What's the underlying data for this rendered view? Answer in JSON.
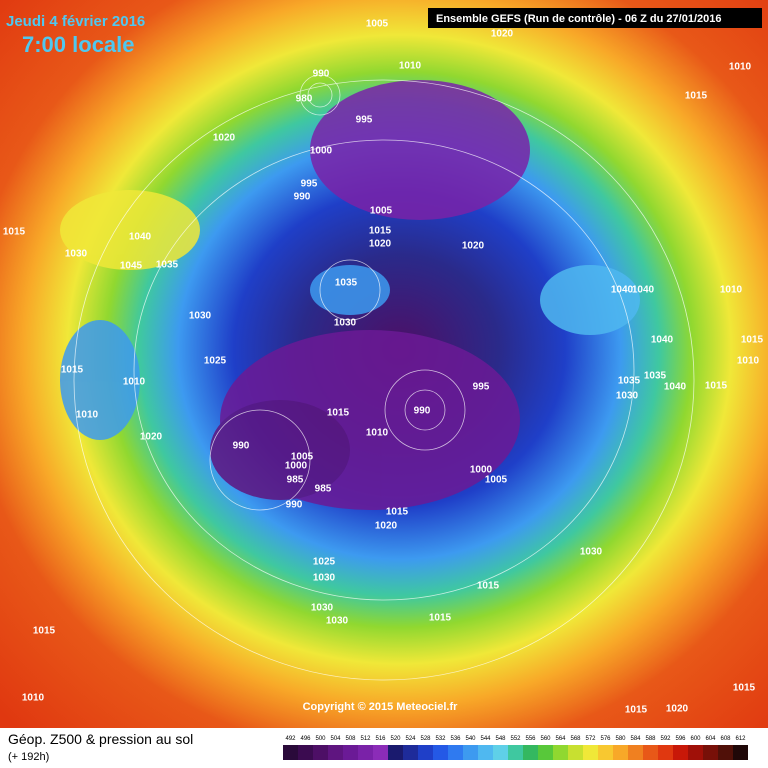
{
  "header": {
    "date": "Jeudi 4 février 2016",
    "time": "7:00 locale",
    "run": "Ensemble GEFS  (Run de contrôle)  -  06 Z du 27/01/2016"
  },
  "copyright": "Copyright © 2015 Meteociel.fr",
  "footer": {
    "title": "Géop. Z500 & pression au sol",
    "lead": "(+ 192h)"
  },
  "colorbar": {
    "ticks": [
      492,
      496,
      500,
      504,
      508,
      512,
      516,
      520,
      524,
      528,
      532,
      536,
      540,
      544,
      548,
      552,
      556,
      560,
      564,
      568,
      572,
      576,
      580,
      584,
      588,
      592,
      596,
      600,
      604,
      608,
      612
    ],
    "colors": [
      "#2a0a3a",
      "#3b0b50",
      "#4d0f66",
      "#5f1580",
      "#6b1a96",
      "#7a22a8",
      "#8b2cb8",
      "#1a1a6e",
      "#1e2b9a",
      "#1f3fc8",
      "#2459e6",
      "#2f7af0",
      "#3d9af0",
      "#4fb8f0",
      "#5fd0e8",
      "#3fc8a0",
      "#34b860",
      "#58c83a",
      "#90d830",
      "#c8e030",
      "#f0e838",
      "#f8c830",
      "#f8a828",
      "#f08020",
      "#e85818",
      "#e03810",
      "#c81808",
      "#a01008",
      "#781008",
      "#501008",
      "#200808"
    ]
  },
  "isobar_labels": [
    1005,
    1020,
    1010,
    1010,
    1015,
    990,
    980,
    995,
    1020,
    1000,
    995,
    990,
    1005,
    1015,
    1020,
    1020,
    1015,
    1040,
    1030,
    1045,
    1035,
    1035,
    1040,
    1040,
    1010,
    1030,
    1030,
    1040,
    1015,
    1025,
    1010,
    1015,
    1010,
    1035,
    1035,
    995,
    1040,
    1015,
    1030,
    1015,
    990,
    1010,
    1010,
    1020,
    990,
    1005,
    1000,
    985,
    985,
    1000,
    1005,
    990,
    1015,
    1020,
    1030,
    1025,
    1030,
    1015,
    1030,
    1030,
    1015,
    1015,
    1010,
    1015,
    1015,
    1020
  ]
}
